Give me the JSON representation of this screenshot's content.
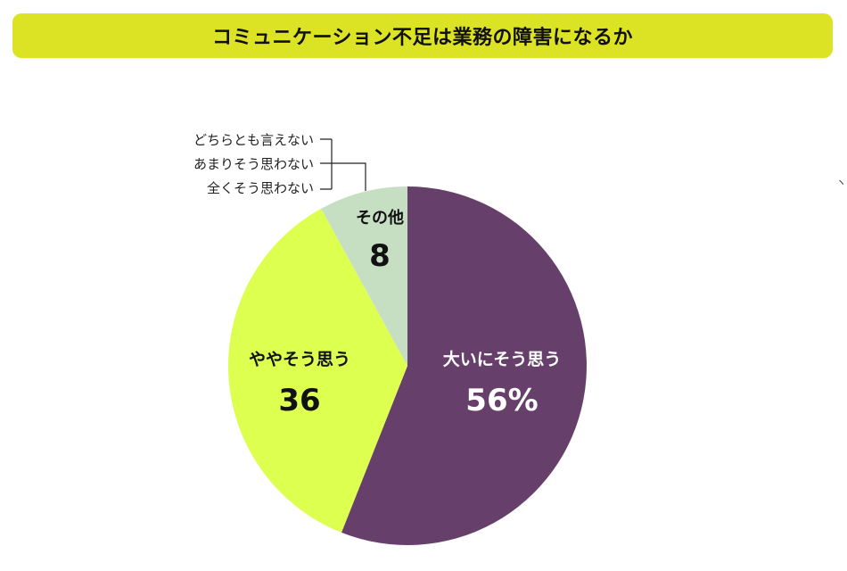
{
  "title": "コミュニケーション不足は業務の障害になるか",
  "chart_data": {
    "type": "pie",
    "title": "コミュニケーション不足は業務の障害になるか",
    "unit": "%",
    "start_angle_deg": 0,
    "direction": "clockwise",
    "slices": [
      {
        "label": "大いにそう思う",
        "value": 56,
        "display": "56%",
        "color": "#66406a",
        "text_color": "#ffffff"
      },
      {
        "label": "ややそう思う",
        "value": 36,
        "display": "36",
        "color": "#dcff50",
        "text_color": "#111111"
      },
      {
        "label": "その他",
        "value": 8,
        "display": "8",
        "color": "#c6dfc3",
        "text_color": "#111111"
      }
    ],
    "other_breakdown": [
      "どちらとも言えない",
      "あまりそう思わない",
      "全くそう思わない"
    ]
  },
  "stray_mark": "ヽ"
}
